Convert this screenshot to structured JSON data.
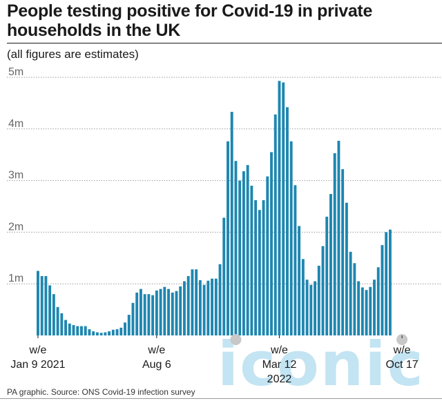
{
  "title": "People testing positive for Covid-19 in private households in the UK",
  "subtitle": "(all figures are estimates)",
  "source": "PA graphic. Source: ONS Covid-19 infection survey",
  "watermark": "iconic",
  "colors": {
    "bar": "#1e86b0",
    "grid": "#9a9a9a",
    "text": "#1a1a1a",
    "axis_text": "#666666",
    "marker": "#c8c8c8",
    "watermark": "#a7d8ec"
  },
  "chart_data": {
    "type": "bar",
    "ylim": [
      0,
      5
    ],
    "yticks": [
      1,
      2,
      3,
      4,
      5
    ],
    "ytick_labels": [
      "1m",
      "2m",
      "3m",
      "4m",
      "5m"
    ],
    "yunit": "millions",
    "x_tick_labels": [
      {
        "index": 0,
        "lines": [
          "w/e",
          "Jan 9 2021"
        ]
      },
      {
        "index": 30,
        "lines": [
          "w/e",
          "Aug 6"
        ]
      },
      {
        "index": 61,
        "lines": [
          "w/e",
          "Mar 12",
          "2022"
        ]
      },
      {
        "index": 92,
        "lines": [
          "w/e",
          "Oct 17"
        ]
      }
    ],
    "markers": [
      50,
      92
    ],
    "values": [
      1.25,
      1.15,
      1.15,
      0.97,
      0.8,
      0.55,
      0.43,
      0.3,
      0.23,
      0.2,
      0.18,
      0.18,
      0.18,
      0.12,
      0.08,
      0.06,
      0.05,
      0.06,
      0.08,
      0.11,
      0.12,
      0.15,
      0.25,
      0.4,
      0.63,
      0.83,
      0.9,
      0.8,
      0.8,
      0.78,
      0.87,
      0.9,
      0.94,
      0.9,
      0.83,
      0.86,
      0.95,
      1.05,
      1.15,
      1.28,
      1.28,
      1.07,
      0.98,
      1.06,
      1.1,
      1.1,
      1.38,
      2.28,
      3.76,
      4.33,
      3.38,
      3.0,
      3.18,
      3.3,
      2.9,
      2.62,
      2.43,
      2.62,
      3.08,
      3.55,
      4.28,
      4.93,
      4.9,
      4.42,
      3.76,
      2.91,
      2.12,
      1.48,
      1.08,
      0.98,
      1.05,
      1.35,
      1.73,
      2.3,
      2.74,
      3.53,
      3.77,
      3.22,
      2.57,
      1.62,
      1.4,
      1.05,
      0.93,
      0.88,
      0.94,
      1.08,
      1.32,
      1.75,
      2.0,
      2.05
    ]
  }
}
